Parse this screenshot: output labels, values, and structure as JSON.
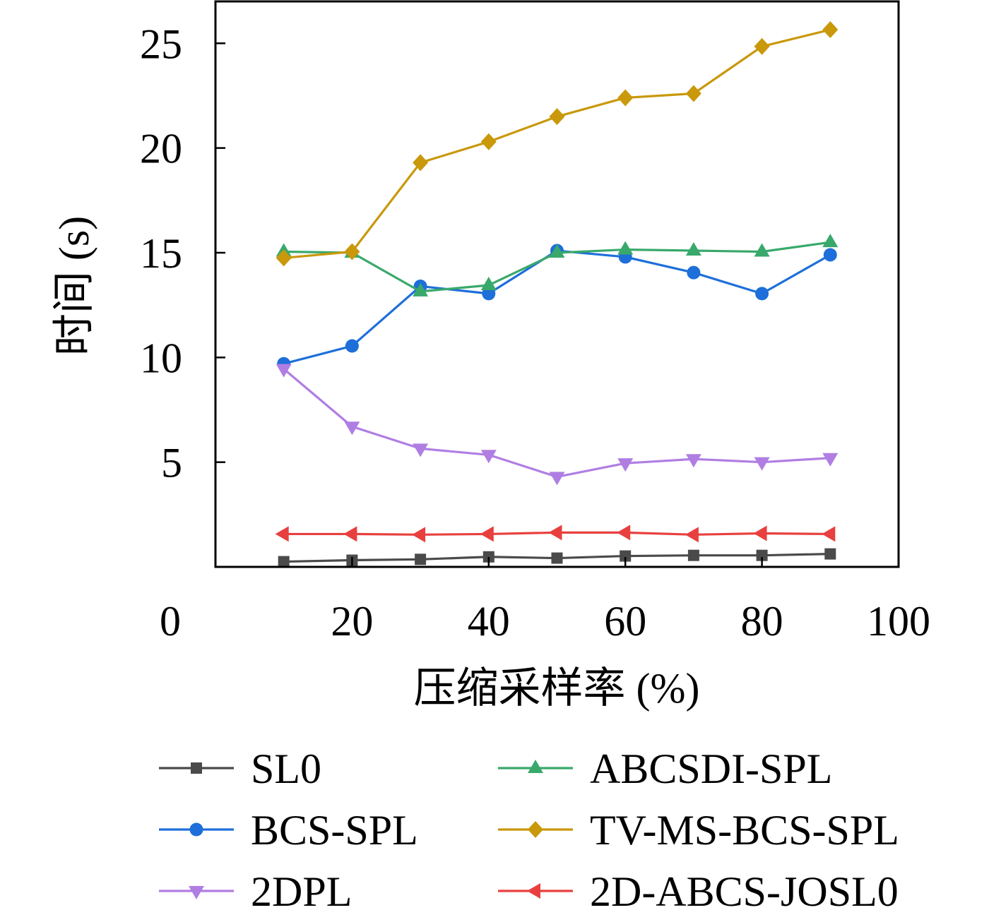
{
  "chart_data": {
    "type": "line",
    "xlabel": "压缩采样率 (%)",
    "ylabel": "时间 (s)",
    "xlim": [
      0,
      100
    ],
    "ylim": [
      0,
      27
    ],
    "x_ticks": [
      0,
      20,
      40,
      60,
      80,
      100
    ],
    "y_ticks": [
      5,
      10,
      15,
      20,
      25
    ],
    "grid": false,
    "legend_placement": "bottom",
    "x": [
      10,
      20,
      30,
      40,
      50,
      60,
      70,
      80,
      90
    ],
    "series": [
      {
        "name": "SL0",
        "color": "#4a4a4a",
        "marker": "square",
        "values": [
          0.25,
          0.32,
          0.36,
          0.48,
          0.42,
          0.52,
          0.55,
          0.55,
          0.62
        ]
      },
      {
        "name": "BCS-SPL",
        "color": "#1e6fd9",
        "marker": "circle",
        "values": [
          9.7,
          10.55,
          13.4,
          13.05,
          15.1,
          14.8,
          14.05,
          13.05,
          14.9
        ]
      },
      {
        "name": "2DPL",
        "color": "#b07ee3",
        "marker": "triangle-down",
        "values": [
          9.45,
          6.7,
          5.65,
          5.35,
          4.3,
          4.95,
          5.15,
          5.0,
          5.2
        ]
      },
      {
        "name": "ABCSDI-SPL",
        "color": "#39a96b",
        "marker": "triangle-up",
        "values": [
          15.05,
          15.0,
          13.15,
          13.45,
          15.0,
          15.15,
          15.1,
          15.05,
          15.5
        ]
      },
      {
        "name": "TV-MS-BCS-SPL",
        "color": "#c9980b",
        "marker": "diamond",
        "values": [
          14.75,
          15.05,
          19.3,
          20.3,
          21.5,
          22.4,
          22.6,
          24.85,
          25.65
        ]
      },
      {
        "name": "2D-ABCS-JOSL0",
        "color": "#e8403f",
        "marker": "triangle-left",
        "values": [
          1.57,
          1.57,
          1.54,
          1.57,
          1.64,
          1.64,
          1.54,
          1.6,
          1.57
        ]
      }
    ]
  }
}
